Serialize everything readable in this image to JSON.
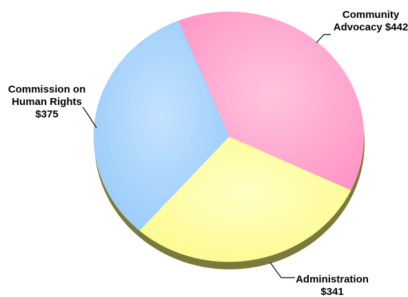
{
  "chart_data": {
    "type": "pie",
    "title": "",
    "slices": [
      {
        "lines": [
          "Community",
          "Advocacy $442"
        ],
        "value": 442,
        "color": "#ff9cc9"
      },
      {
        "lines": [
          "Administration",
          "$341"
        ],
        "value": 341,
        "color": "#ffff99"
      },
      {
        "lines": [
          "Commission on",
          "Human Rights",
          "$375"
        ],
        "value": 375,
        "color": "#99ccff"
      }
    ]
  }
}
